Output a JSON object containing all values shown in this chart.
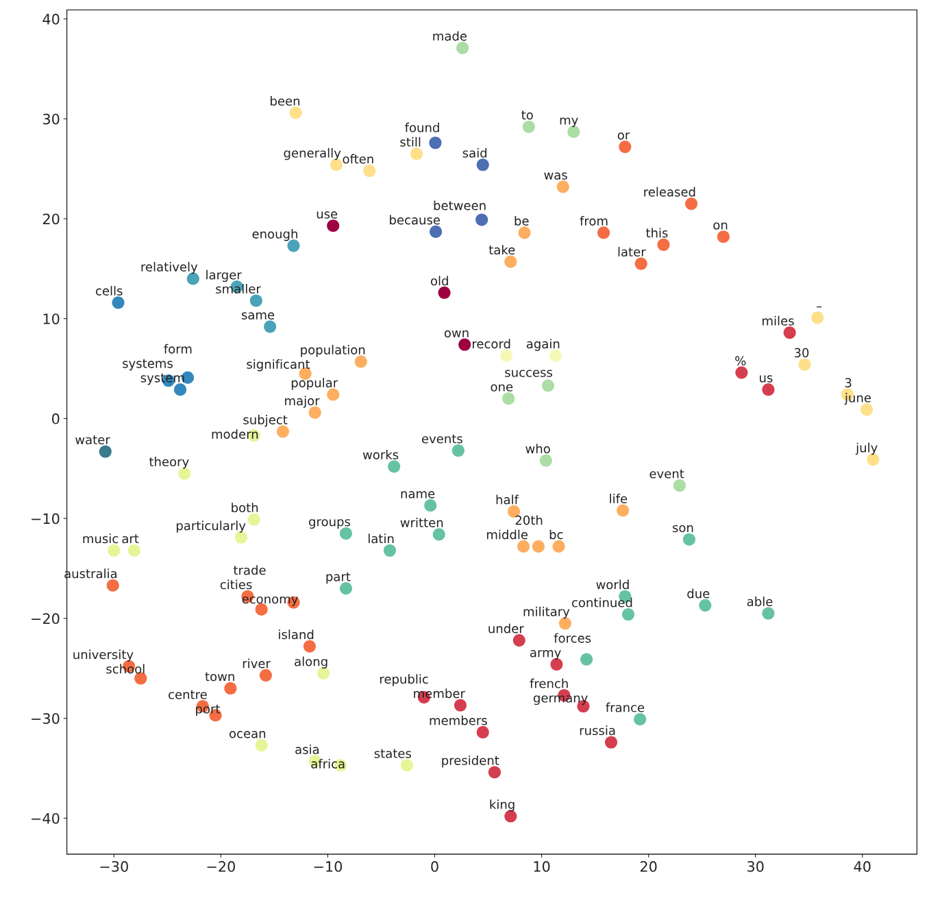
{
  "chart_data": {
    "type": "scatter",
    "xlim": [
      -34.4,
      45.1
    ],
    "ylim": [
      -43.6,
      40.9
    ],
    "xticks": [
      -30,
      -20,
      -10,
      0,
      10,
      20,
      30,
      40
    ],
    "yticks": [
      -40,
      -30,
      -20,
      -10,
      0,
      10,
      20,
      30,
      40
    ],
    "grid": false,
    "legend": false,
    "marker": "circle",
    "series": [
      {
        "color": "#9e0142",
        "x": [
          -9.5,
          2.8,
          0.9
        ],
        "values": [
          19.3,
          7.4,
          12.6
        ]
      },
      {
        "color": "#d53e4f",
        "x": [
          7.9,
          16.5,
          7.1,
          5.6,
          33.2,
          11.4,
          12.1,
          13.9,
          4.5,
          2.4,
          -1.0,
          31.2,
          28.7
        ],
        "values": [
          -22.2,
          -32.4,
          -39.8,
          -35.4,
          8.6,
          -24.6,
          -27.7,
          -28.8,
          -31.4,
          -28.7,
          -27.9,
          2.9,
          4.6
        ]
      },
      {
        "color": "#f46d43",
        "x": [
          27.0,
          -30.1,
          -28.6,
          -27.5,
          -21.7,
          -20.5,
          -17.5,
          -13.2,
          -16.2,
          -11.7,
          -19.1,
          -15.8,
          15.8,
          19.3,
          21.4,
          17.8,
          24.0
        ],
        "values": [
          18.2,
          -16.7,
          -24.8,
          -26.0,
          -28.8,
          -29.7,
          -17.8,
          -18.4,
          -19.1,
          -22.8,
          -27.0,
          -25.7,
          18.6,
          15.5,
          17.4,
          27.2,
          21.5
        ]
      },
      {
        "color": "#fdae61",
        "x": [
          12.2,
          7.4,
          11.6,
          8.3,
          9.7,
          17.6,
          -6.9,
          -12.1,
          -14.2,
          -11.2,
          -9.5,
          12.0,
          8.4,
          7.1
        ],
        "values": [
          -20.5,
          -9.3,
          -12.8,
          -12.8,
          -12.8,
          -9.2,
          5.7,
          4.5,
          -1.3,
          0.6,
          2.4,
          23.2,
          18.6,
          15.7
        ]
      },
      {
        "color": "#fee08b",
        "x": [
          -13.0,
          -1.7,
          -9.2,
          -6.1,
          35.8,
          34.6,
          38.6,
          40.4,
          41.0
        ],
        "values": [
          30.6,
          26.5,
          25.4,
          24.8,
          10.1,
          5.4,
          2.4,
          0.9,
          -4.1
        ]
      },
      {
        "color": "#f6f9b6",
        "x": [
          11.3,
          6.7
        ],
        "values": [
          6.3,
          6.3
        ]
      },
      {
        "color": "#e6f598",
        "x": [
          -30.0,
          -28.1,
          -10.4,
          -16.2,
          -11.2,
          -8.8,
          -2.6,
          -16.9,
          -18.1,
          -23.4,
          -16.9
        ],
        "values": [
          -13.2,
          -13.2,
          -25.5,
          -32.7,
          -34.3,
          -34.7,
          -34.7,
          -10.1,
          -11.9,
          -5.5,
          -1.7
        ]
      },
      {
        "color": "#abdda4",
        "x": [
          2.6,
          6.9,
          10.6,
          10.4,
          22.9,
          13.0,
          8.8
        ],
        "values": [
          37.1,
          2.0,
          3.3,
          -4.2,
          -6.7,
          28.7,
          29.2
        ]
      },
      {
        "color": "#66c2a5",
        "x": [
          -8.3,
          2.2,
          -3.8,
          -4.2,
          23.8,
          31.2,
          17.8,
          25.3,
          18.1,
          14.2,
          19.2,
          -8.3,
          0.4,
          -0.4
        ],
        "values": [
          -17.0,
          -3.2,
          -4.8,
          -13.2,
          -12.1,
          -19.5,
          -17.8,
          -18.7,
          -19.6,
          -24.1,
          -30.1,
          -11.5,
          -11.6,
          -8.7
        ]
      },
      {
        "color": "#4aa3b8",
        "x": [
          -13.2,
          -22.6,
          -18.5,
          -16.7,
          -15.4
        ],
        "values": [
          17.3,
          14.0,
          13.2,
          11.8,
          9.2
        ]
      },
      {
        "color": "#3288bd",
        "x": [
          -29.6,
          -23.8,
          -24.9,
          -23.1
        ],
        "values": [
          11.6,
          2.9,
          3.8,
          4.1
        ]
      },
      {
        "color": "#3b7a8c",
        "x": [
          -30.8
        ],
        "values": [
          -3.3
        ]
      },
      {
        "color": "#4d6eb3",
        "x": [
          0.1,
          4.4,
          0.06,
          4.5
        ],
        "values": [
          18.7,
          19.9,
          27.6,
          25.4
        ]
      }
    ],
    "annotations": [
      {
        "text": "use",
        "x": -9.5,
        "y": 19.3
      },
      {
        "text": "own",
        "x": 2.8,
        "y": 7.4
      },
      {
        "text": "old",
        "x": 0.9,
        "y": 12.6
      },
      {
        "text": "under",
        "x": 7.9,
        "y": -22.2
      },
      {
        "text": "russia",
        "x": 16.5,
        "y": -32.4
      },
      {
        "text": "king",
        "x": 7.1,
        "y": -39.8
      },
      {
        "text": "president",
        "x": 5.6,
        "y": -35.4
      },
      {
        "text": "miles",
        "x": 33.2,
        "y": 8.6
      },
      {
        "text": "army",
        "x": 11.4,
        "y": -24.6
      },
      {
        "text": "french",
        "x": 12.1,
        "y": -27.7
      },
      {
        "text": "germany",
        "x": 13.9,
        "y": -28.8
      },
      {
        "text": "members",
        "x": 4.5,
        "y": -31.4
      },
      {
        "text": "member",
        "x": 2.4,
        "y": -28.7
      },
      {
        "text": "republic",
        "x": -1.0,
        "y": -27.9
      },
      {
        "text": "us",
        "x": 31.2,
        "y": 2.9
      },
      {
        "text": "%",
        "x": 28.7,
        "y": 4.6
      },
      {
        "text": "on",
        "x": 27.0,
        "y": 18.2
      },
      {
        "text": "australia",
        "x": -30.1,
        "y": -16.7
      },
      {
        "text": "university",
        "x": -28.6,
        "y": -24.8
      },
      {
        "text": "school",
        "x": -27.5,
        "y": -26.0
      },
      {
        "text": "centre",
        "x": -21.7,
        "y": -28.8
      },
      {
        "text": "port",
        "x": -20.5,
        "y": -29.7
      },
      {
        "text": "cities",
        "x": -17.5,
        "y": -17.8
      },
      {
        "text": "economy",
        "x": -13.2,
        "y": -18.4
      },
      {
        "text": "trade",
        "x": -16.2,
        "y": -19.1
      },
      {
        "text": "island",
        "x": -11.7,
        "y": -22.8
      },
      {
        "text": "town",
        "x": -19.1,
        "y": -27.0
      },
      {
        "text": "river",
        "x": -15.8,
        "y": -25.7
      },
      {
        "text": "from",
        "x": 15.8,
        "y": 18.6
      },
      {
        "text": "later",
        "x": 19.3,
        "y": 15.5
      },
      {
        "text": "this",
        "x": 21.4,
        "y": 17.4
      },
      {
        "text": "or",
        "x": 17.8,
        "y": 27.2
      },
      {
        "text": "released",
        "x": 24.0,
        "y": 21.5
      },
      {
        "text": "military",
        "x": 12.2,
        "y": -20.5
      },
      {
        "text": "half",
        "x": 7.4,
        "y": -9.3
      },
      {
        "text": "bc",
        "x": 11.6,
        "y": -12.8
      },
      {
        "text": "middle",
        "x": 8.3,
        "y": -12.8
      },
      {
        "text": "20th",
        "x": 9.7,
        "y": -12.8
      },
      {
        "text": "life",
        "x": 17.6,
        "y": -9.2
      },
      {
        "text": "population",
        "x": -6.9,
        "y": 5.7
      },
      {
        "text": "significant",
        "x": -12.1,
        "y": 4.5
      },
      {
        "text": "subject",
        "x": -14.2,
        "y": -1.3
      },
      {
        "text": "major",
        "x": -11.2,
        "y": 0.6
      },
      {
        "text": "popular",
        "x": -9.5,
        "y": 2.4
      },
      {
        "text": "was",
        "x": 12.0,
        "y": 23.2
      },
      {
        "text": "be",
        "x": 8.4,
        "y": 18.6
      },
      {
        "text": "take",
        "x": 7.1,
        "y": 15.7
      },
      {
        "text": "been",
        "x": -13.0,
        "y": 30.6
      },
      {
        "text": "still",
        "x": -1.7,
        "y": 26.5
      },
      {
        "text": "generally",
        "x": -9.2,
        "y": 25.4
      },
      {
        "text": "often",
        "x": -6.1,
        "y": 24.8
      },
      {
        "text": "–",
        "x": 35.8,
        "y": 10.1
      },
      {
        "text": "30",
        "x": 34.6,
        "y": 5.4
      },
      {
        "text": "3",
        "x": 38.6,
        "y": 2.4
      },
      {
        "text": "june",
        "x": 40.4,
        "y": 0.9
      },
      {
        "text": "july",
        "x": 41.0,
        "y": -4.1
      },
      {
        "text": "again",
        "x": 11.3,
        "y": 6.3
      },
      {
        "text": "record",
        "x": 6.7,
        "y": 6.3
      },
      {
        "text": "music",
        "x": -30.0,
        "y": -13.2
      },
      {
        "text": "art",
        "x": -28.1,
        "y": -13.2
      },
      {
        "text": "along",
        "x": -10.4,
        "y": -25.5
      },
      {
        "text": "ocean",
        "x": -16.2,
        "y": -32.7
      },
      {
        "text": "asia",
        "x": -11.2,
        "y": -34.3
      },
      {
        "text": "africa",
        "x": -8.8,
        "y": -34.7
      },
      {
        "text": "states",
        "x": -2.6,
        "y": -34.7
      },
      {
        "text": "both",
        "x": -16.9,
        "y": -10.1
      },
      {
        "text": "particularly",
        "x": -18.1,
        "y": -11.9
      },
      {
        "text": "theory",
        "x": -23.4,
        "y": -5.5
      },
      {
        "text": "modern",
        "x": -16.9,
        "y": -1.7
      },
      {
        "text": "made",
        "x": 2.6,
        "y": 37.1
      },
      {
        "text": "one",
        "x": 6.9,
        "y": 2.0
      },
      {
        "text": "success",
        "x": 10.6,
        "y": 3.3
      },
      {
        "text": "who",
        "x": 10.4,
        "y": -4.2
      },
      {
        "text": "event",
        "x": 22.9,
        "y": -6.7
      },
      {
        "text": "my",
        "x": 13.0,
        "y": 28.7
      },
      {
        "text": "to",
        "x": 8.8,
        "y": 29.2
      },
      {
        "text": "part",
        "x": -8.3,
        "y": -17.0
      },
      {
        "text": "events",
        "x": 2.2,
        "y": -3.2
      },
      {
        "text": "works",
        "x": -3.8,
        "y": -4.8
      },
      {
        "text": "latin",
        "x": -4.2,
        "y": -13.2
      },
      {
        "text": "son",
        "x": 23.8,
        "y": -12.1
      },
      {
        "text": "able",
        "x": 31.2,
        "y": -19.5
      },
      {
        "text": "world",
        "x": 17.8,
        "y": -17.8
      },
      {
        "text": "due",
        "x": 25.3,
        "y": -18.7
      },
      {
        "text": "continued",
        "x": 18.1,
        "y": -19.6
      },
      {
        "text": "forces",
        "x": 14.2,
        "y": -24.1
      },
      {
        "text": "france",
        "x": 19.2,
        "y": -30.1
      },
      {
        "text": "groups",
        "x": -8.3,
        "y": -11.5
      },
      {
        "text": "written",
        "x": 0.4,
        "y": -11.6
      },
      {
        "text": "name",
        "x": -0.4,
        "y": -8.7
      },
      {
        "text": "enough",
        "x": -13.2,
        "y": 17.3
      },
      {
        "text": "relatively",
        "x": -22.6,
        "y": 14.0
      },
      {
        "text": "larger",
        "x": -18.5,
        "y": 13.2
      },
      {
        "text": "smaller",
        "x": -16.7,
        "y": 11.8
      },
      {
        "text": "same",
        "x": -15.4,
        "y": 9.2
      },
      {
        "text": "cells",
        "x": -29.6,
        "y": 11.6
      },
      {
        "text": "system",
        "x": -23.8,
        "y": 2.9
      },
      {
        "text": "systems",
        "x": -24.9,
        "y": 3.8
      },
      {
        "text": "form",
        "x": -23.1,
        "y": 4.1
      },
      {
        "text": "water",
        "x": -30.8,
        "y": -3.3
      },
      {
        "text": "because",
        "x": 0.1,
        "y": 18.7
      },
      {
        "text": "between",
        "x": 4.4,
        "y": 19.9
      },
      {
        "text": "found",
        "x": 0.06,
        "y": 27.6
      },
      {
        "text": "said",
        "x": 4.5,
        "y": 25.4
      }
    ]
  }
}
